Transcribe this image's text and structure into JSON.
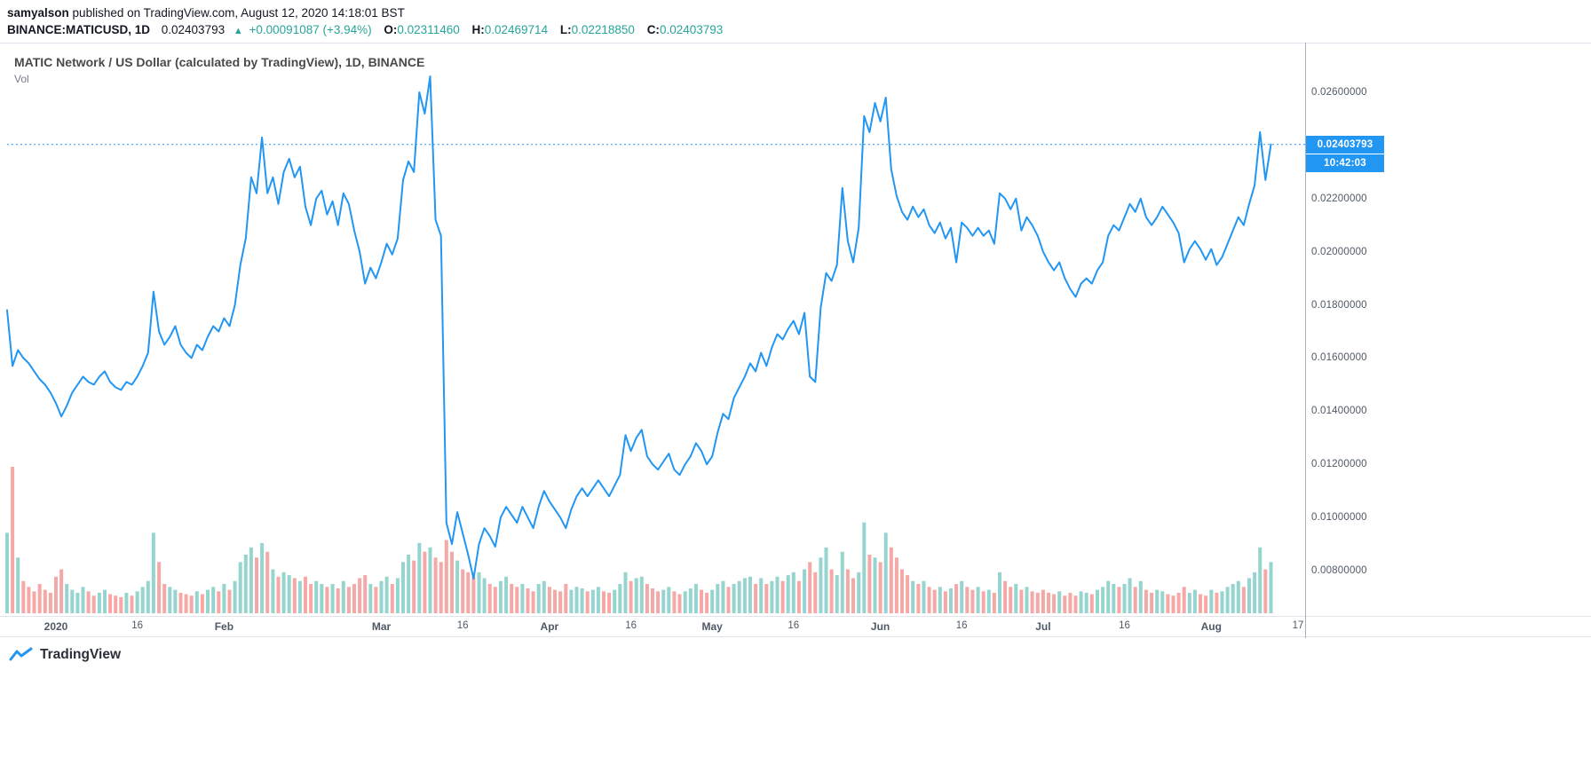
{
  "publish": {
    "username": "samyalson",
    "rest": " published on TradingView.com, August 12, 2020 14:18:01 BST"
  },
  "header": {
    "symbol": "BINANCE:MATICUSD, 1D",
    "last_price": "0.02403793",
    "arrow": "▲",
    "change": "+0.00091087 (+3.94%)",
    "o_label": "O:",
    "open": "0.02311460",
    "h_label": "H:",
    "high": "0.02469714",
    "l_label": "L:",
    "low": "0.02218850",
    "c_label": "C:",
    "close": "0.02403793"
  },
  "chart": {
    "title": "MATIC Network / US Dollar (calculated by TradingView), 1D, BINANCE",
    "vol_label": "Vol",
    "price_badge": "0.02403793",
    "countdown_badge": "10:42:03",
    "colors": {
      "line": "#2196f3",
      "badge_bg": "#2196f3",
      "vol_up": "#96d5cf",
      "vol_down": "#f5a8a6",
      "value_teal": "#26a69a",
      "change_green": "#26a69a",
      "axis_text": "#4f5966",
      "border": "#e0e3eb"
    }
  },
  "chart_data": {
    "type": "line",
    "symbol": "BINANCE:MATICUSD",
    "interval": "1D",
    "exchange": "BINANCE",
    "title": "MATIC Network / US Dollar (calculated by TradingView), 1D, BINANCE",
    "start_date": "2019-12-23",
    "end_date": "2020-08-12",
    "current_price": 0.02403793,
    "ohlc": {
      "open": 0.0231146,
      "high": 0.02469714,
      "low": 0.0221885,
      "close": 0.02403793
    },
    "change_abs": "+0.00091087",
    "change_pct": "+3.94%",
    "countdown": "10:42:03",
    "grid": false,
    "legend_position": "none",
    "y_axis": {
      "min": 0.008,
      "max": 0.026,
      "labels": [
        {
          "v": 0.026,
          "label": "0.02600000"
        },
        {
          "v": 0.024,
          "label": "0.02400000"
        },
        {
          "v": 0.022,
          "label": "0.02200000"
        },
        {
          "v": 0.02,
          "label": "0.02000000"
        },
        {
          "v": 0.018,
          "label": "0.01800000"
        },
        {
          "v": 0.016,
          "label": "0.01600000"
        },
        {
          "v": 0.014,
          "label": "0.01400000"
        },
        {
          "v": 0.012,
          "label": "0.01200000"
        },
        {
          "v": 0.01,
          "label": "0.01000000"
        },
        {
          "v": 0.008,
          "label": "0.00800000"
        }
      ]
    },
    "x_ticks": [
      {
        "i": 9,
        "label": "2020",
        "major": true
      },
      {
        "i": 24,
        "label": "16",
        "major": false
      },
      {
        "i": 40,
        "label": "Feb",
        "major": true
      },
      {
        "i": 69,
        "label": "Mar",
        "major": true
      },
      {
        "i": 84,
        "label": "16",
        "major": false
      },
      {
        "i": 100,
        "label": "Apr",
        "major": true
      },
      {
        "i": 115,
        "label": "16",
        "major": false
      },
      {
        "i": 130,
        "label": "May",
        "major": true
      },
      {
        "i": 145,
        "label": "16",
        "major": false
      },
      {
        "i": 161,
        "label": "Jun",
        "major": true
      },
      {
        "i": 176,
        "label": "16",
        "major": false
      },
      {
        "i": 191,
        "label": "Jul",
        "major": true
      },
      {
        "i": 206,
        "label": "16",
        "major": false
      },
      {
        "i": 222,
        "label": "Aug",
        "major": true
      },
      {
        "i": 238,
        "label": "17",
        "major": false
      }
    ],
    "total_slots": 238,
    "prices": [
      0.0178,
      0.0157,
      0.0163,
      0.016,
      0.0158,
      0.0155,
      0.0152,
      0.015,
      0.0147,
      0.0143,
      0.0138,
      0.0142,
      0.0147,
      0.015,
      0.0153,
      0.0151,
      0.015,
      0.0153,
      0.0155,
      0.0151,
      0.0149,
      0.0148,
      0.0151,
      0.015,
      0.0153,
      0.0157,
      0.0162,
      0.0185,
      0.017,
      0.0165,
      0.0168,
      0.0172,
      0.0165,
      0.0162,
      0.016,
      0.0165,
      0.0163,
      0.0168,
      0.0172,
      0.017,
      0.0175,
      0.0172,
      0.018,
      0.0195,
      0.0205,
      0.0228,
      0.0222,
      0.0243,
      0.0222,
      0.0228,
      0.0218,
      0.023,
      0.0235,
      0.0228,
      0.0232,
      0.0217,
      0.021,
      0.022,
      0.0223,
      0.0214,
      0.0219,
      0.021,
      0.0222,
      0.0218,
      0.0208,
      0.02,
      0.0188,
      0.0194,
      0.019,
      0.0196,
      0.0203,
      0.0199,
      0.0205,
      0.0227,
      0.0234,
      0.023,
      0.026,
      0.0252,
      0.0266,
      0.0212,
      0.0206,
      0.0098,
      0.009,
      0.0102,
      0.0094,
      0.0086,
      0.0077,
      0.009,
      0.0096,
      0.0093,
      0.0089,
      0.01,
      0.0104,
      0.0101,
      0.0098,
      0.0104,
      0.01,
      0.0096,
      0.0104,
      0.011,
      0.0106,
      0.0103,
      0.01,
      0.0096,
      0.0103,
      0.0108,
      0.0111,
      0.0108,
      0.0111,
      0.0114,
      0.0111,
      0.0108,
      0.0112,
      0.0116,
      0.0131,
      0.0125,
      0.013,
      0.0133,
      0.0123,
      0.012,
      0.0118,
      0.0121,
      0.0124,
      0.0118,
      0.0116,
      0.012,
      0.0123,
      0.0128,
      0.0125,
      0.012,
      0.0123,
      0.0132,
      0.0139,
      0.0137,
      0.0145,
      0.0149,
      0.0153,
      0.0158,
      0.0155,
      0.0162,
      0.0157,
      0.0164,
      0.0169,
      0.0167,
      0.0171,
      0.0174,
      0.0169,
      0.0177,
      0.0153,
      0.0151,
      0.0179,
      0.0192,
      0.0189,
      0.0195,
      0.0224,
      0.0204,
      0.0196,
      0.0209,
      0.0251,
      0.0245,
      0.0256,
      0.0249,
      0.0258,
      0.0231,
      0.0221,
      0.0215,
      0.0212,
      0.0217,
      0.0213,
      0.0216,
      0.021,
      0.0207,
      0.0211,
      0.0205,
      0.0209,
      0.0196,
      0.0211,
      0.0209,
      0.0206,
      0.0209,
      0.0206,
      0.0208,
      0.0203,
      0.0222,
      0.022,
      0.0216,
      0.022,
      0.0208,
      0.0213,
      0.021,
      0.0206,
      0.02,
      0.0196,
      0.0193,
      0.0196,
      0.019,
      0.0186,
      0.0183,
      0.0188,
      0.019,
      0.0188,
      0.0193,
      0.0196,
      0.0206,
      0.021,
      0.0208,
      0.0213,
      0.0218,
      0.0215,
      0.022,
      0.0213,
      0.021,
      0.0213,
      0.0217,
      0.0214,
      0.0211,
      0.0207,
      0.0196,
      0.0201,
      0.0204,
      0.0201,
      0.0197,
      0.0201,
      0.0195,
      0.0198,
      0.0203,
      0.0208,
      0.0213,
      0.021,
      0.0218,
      0.0225,
      0.0245,
      0.0227,
      0.02403793
    ],
    "volumes": [
      55,
      100,
      38,
      22,
      18,
      15,
      20,
      16,
      14,
      25,
      30,
      20,
      16,
      14,
      18,
      15,
      12,
      14,
      16,
      13,
      12,
      11,
      14,
      12,
      15,
      18,
      22,
      55,
      35,
      20,
      18,
      16,
      14,
      13,
      12,
      15,
      13,
      16,
      18,
      15,
      20,
      16,
      22,
      35,
      40,
      45,
      38,
      48,
      42,
      30,
      25,
      28,
      26,
      24,
      22,
      25,
      20,
      22,
      20,
      18,
      20,
      17,
      22,
      18,
      20,
      24,
      26,
      20,
      18,
      22,
      25,
      20,
      24,
      35,
      40,
      36,
      48,
      42,
      45,
      38,
      35,
      50,
      42,
      36,
      30,
      28,
      25,
      28,
      24,
      20,
      18,
      22,
      25,
      20,
      18,
      20,
      17,
      15,
      20,
      22,
      18,
      16,
      15,
      20,
      16,
      18,
      17,
      15,
      16,
      18,
      15,
      14,
      16,
      20,
      28,
      22,
      24,
      25,
      20,
      17,
      15,
      16,
      18,
      15,
      13,
      15,
      17,
      20,
      16,
      14,
      16,
      20,
      22,
      18,
      20,
      22,
      24,
      25,
      20,
      24,
      20,
      22,
      25,
      22,
      26,
      28,
      22,
      30,
      35,
      28,
      38,
      45,
      30,
      26,
      42,
      30,
      24,
      28,
      62,
      40,
      38,
      35,
      55,
      45,
      38,
      30,
      26,
      22,
      20,
      22,
      18,
      16,
      18,
      15,
      17,
      20,
      22,
      18,
      16,
      18,
      15,
      16,
      14,
      28,
      22,
      18,
      20,
      16,
      18,
      15,
      14,
      16,
      14,
      13,
      15,
      12,
      14,
      12,
      15,
      14,
      13,
      16,
      18,
      22,
      20,
      18,
      20,
      24,
      18,
      22,
      16,
      14,
      16,
      15,
      13,
      12,
      14,
      18,
      14,
      16,
      13,
      12,
      16,
      14,
      15,
      18,
      20,
      22,
      18,
      24,
      28,
      45,
      30,
      35
    ],
    "volume_units": "relative height 0-100; bar color = up/down vs previous close"
  },
  "footer": {
    "brand": "TradingView"
  }
}
